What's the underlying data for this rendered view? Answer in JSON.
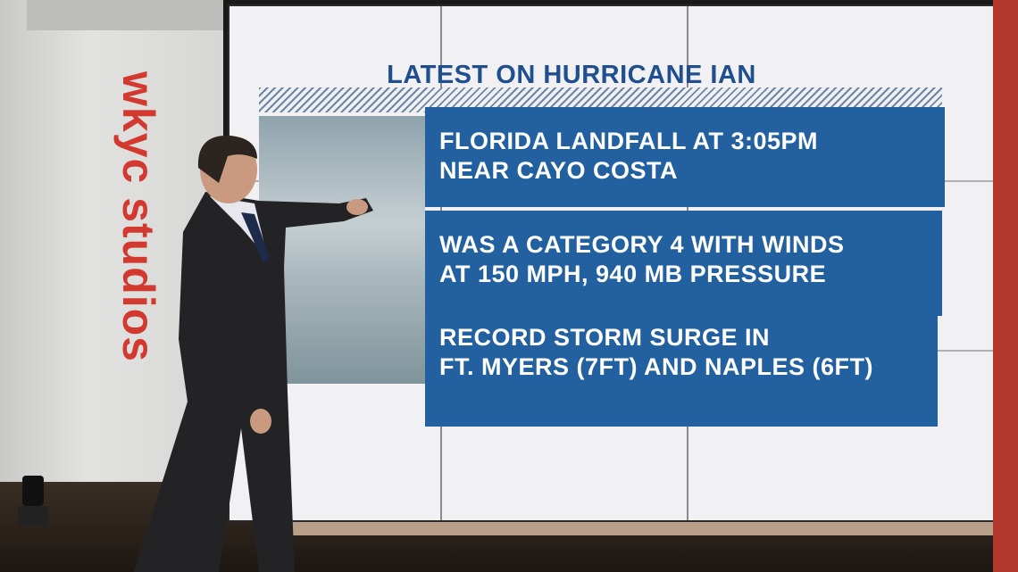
{
  "studio_sign": "wkyc studios",
  "screen": {
    "title": "LATEST ON HURRICANE IAN",
    "items": [
      {
        "lines": [
          "FLORIDA LANDFALL AT 3:05PM",
          "NEAR CAYO COSTA"
        ]
      },
      {
        "lines": [
          "WAS A CATEGORY 4 WITH WINDS",
          "AT 150 MPH, 940 MB PRESSURE"
        ]
      },
      {
        "lines": [
          "RECORD STORM SURGE IN",
          "FT. MYERS (7FT) AND NAPLES (6FT)"
        ]
      }
    ]
  }
}
